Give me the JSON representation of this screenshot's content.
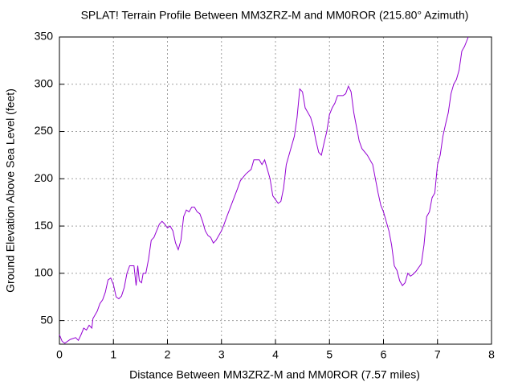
{
  "chart_data": {
    "type": "line",
    "title": "SPLAT! Terrain Profile Between MM3ZRZ-M and MM0ROR (215.80° Azimuth)",
    "x_label": "Distance Between MM3ZRZ-M and MM0ROR (7.57 miles)",
    "y_label": "Ground Elevation Above Sea Level (feet)",
    "x": [
      0,
      0.05,
      0.1,
      0.2,
      0.3,
      0.35,
      0.4,
      0.45,
      0.5,
      0.55,
      0.6,
      0.62,
      0.7,
      0.75,
      0.8,
      0.85,
      0.9,
      0.95,
      1.0,
      1.05,
      1.1,
      1.15,
      1.2,
      1.25,
      1.3,
      1.38,
      1.42,
      1.45,
      1.48,
      1.52,
      1.55,
      1.6,
      1.65,
      1.7,
      1.75,
      1.8,
      1.85,
      1.9,
      1.95,
      2.0,
      2.05,
      2.1,
      2.15,
      2.2,
      2.25,
      2.3,
      2.35,
      2.4,
      2.45,
      2.5,
      2.55,
      2.6,
      2.65,
      2.7,
      2.75,
      2.8,
      2.85,
      2.9,
      2.95,
      3.0,
      3.05,
      3.1,
      3.2,
      3.3,
      3.35,
      3.45,
      3.55,
      3.6,
      3.7,
      3.75,
      3.8,
      3.85,
      3.9,
      3.95,
      4.0,
      4.05,
      4.1,
      4.15,
      4.2,
      4.25,
      4.3,
      4.35,
      4.4,
      4.45,
      4.5,
      4.55,
      4.6,
      4.65,
      4.7,
      4.75,
      4.8,
      4.85,
      4.9,
      4.95,
      5.0,
      5.05,
      5.1,
      5.15,
      5.25,
      5.3,
      5.35,
      5.4,
      5.45,
      5.5,
      5.55,
      5.6,
      5.7,
      5.8,
      5.85,
      5.9,
      5.95,
      6.0,
      6.05,
      6.1,
      6.15,
      6.2,
      6.25,
      6.3,
      6.35,
      6.4,
      6.45,
      6.5,
      6.55,
      6.6,
      6.7,
      6.75,
      6.8,
      6.85,
      6.9,
      6.95,
      7.0,
      7.05,
      7.1,
      7.15,
      7.2,
      7.25,
      7.3,
      7.35,
      7.4,
      7.45,
      7.5,
      7.57
    ],
    "series": [
      {
        "color": "#9400d3",
        "values": [
          35,
          28,
          26,
          30,
          32,
          29,
          35,
          42,
          40,
          45,
          42,
          52,
          60,
          68,
          72,
          80,
          93,
          95,
          88,
          75,
          73,
          76,
          85,
          100,
          108,
          108,
          87,
          108,
          92,
          90,
          100,
          100,
          115,
          135,
          138,
          145,
          152,
          155,
          152,
          148,
          150,
          145,
          132,
          125,
          135,
          160,
          167,
          165,
          170,
          170,
          165,
          163,
          155,
          145,
          140,
          138,
          132,
          135,
          140,
          145,
          152,
          160,
          175,
          190,
          198,
          205,
          210,
          220,
          220,
          215,
          220,
          210,
          200,
          182,
          178,
          174,
          176,
          190,
          215,
          225,
          235,
          245,
          265,
          295,
          292,
          275,
          270,
          265,
          255,
          240,
          228,
          225,
          238,
          250,
          268,
          275,
          280,
          288,
          288,
          290,
          298,
          292,
          270,
          255,
          240,
          232,
          225,
          215,
          200,
          185,
          172,
          165,
          155,
          145,
          130,
          108,
          103,
          92,
          87,
          90,
          100,
          97,
          99,
          102,
          110,
          130,
          160,
          165,
          180,
          185,
          215,
          225,
          245,
          258,
          270,
          290,
          300,
          305,
          315,
          335,
          340,
          350
        ]
      }
    ],
    "xlim": [
      0,
      8
    ],
    "xticks": [
      0,
      1,
      2,
      3,
      4,
      5,
      6,
      7,
      8
    ],
    "ylim": [
      25,
      350
    ],
    "yticks": [
      50,
      100,
      150,
      200,
      250,
      300,
      350
    ],
    "grid": true
  }
}
